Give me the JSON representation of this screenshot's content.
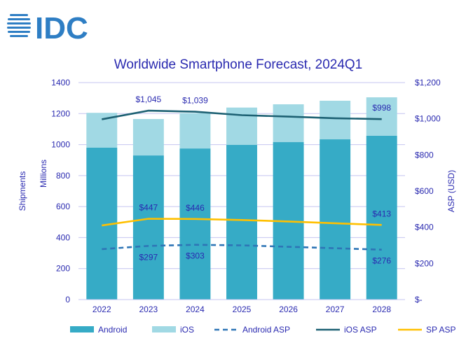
{
  "logo_text": "IDC",
  "chart_data": {
    "type": "bar",
    "title": "Worldwide Smartphone Forecast, 2024Q1",
    "ylabel": "Shipments",
    "ylabel2": "Millions",
    "y2label": "ASP (USD)",
    "ylim": [
      0,
      1400
    ],
    "y2lim": [
      0,
      1200
    ],
    "yticks": [
      "0",
      "200",
      "400",
      "600",
      "800",
      "1000",
      "1200",
      "1400"
    ],
    "y2ticks": [
      "$-",
      "$200",
      "$400",
      "$600",
      "$800",
      "$1,000",
      "$1,200"
    ],
    "categories": [
      "2022",
      "2023",
      "2024",
      "2025",
      "2026",
      "2027",
      "2028"
    ],
    "series": [
      {
        "name": "Android",
        "kind": "bar",
        "color": "#36abc6",
        "values": [
          980,
          930,
          975,
          998,
          1016,
          1034,
          1057
        ]
      },
      {
        "name": "iOS",
        "kind": "bar",
        "color": "#a1d9e4",
        "values": [
          225,
          235,
          228,
          241,
          244,
          249,
          248
        ]
      },
      {
        "name": "Android ASP",
        "kind": "line",
        "axis": "right",
        "dashed": true,
        "color": "#2e75b6",
        "values": [
          279,
          297,
          303,
          300,
          292,
          284,
          276
        ],
        "labels": [
          "",
          "$297",
          "$303",
          "",
          "",
          "",
          "$276"
        ]
      },
      {
        "name": "iOS ASP",
        "kind": "line",
        "axis": "right",
        "color": "#1d6173",
        "values": [
          997,
          1045,
          1039,
          1020,
          1012,
          1003,
          998
        ],
        "labels": [
          "",
          "$1,045",
          "$1,039",
          "",
          "",
          "",
          "$998"
        ]
      },
      {
        "name": "SP ASP",
        "kind": "line",
        "axis": "right",
        "color": "#ffc000",
        "values": [
          410,
          447,
          446,
          440,
          432,
          422,
          413
        ],
        "labels": [
          "",
          "$447",
          "$446",
          "",
          "",
          "",
          "$413"
        ]
      }
    ],
    "grid": true,
    "legend": "bottom"
  }
}
